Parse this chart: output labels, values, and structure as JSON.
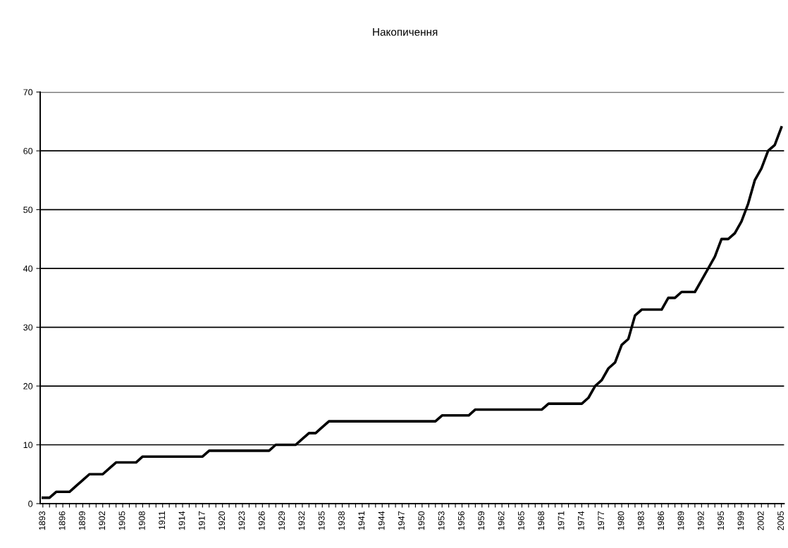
{
  "chart_data": {
    "type": "line",
    "title": "Накопичення",
    "categories": [
      "1893",
      null,
      null,
      "1896",
      null,
      null,
      "1899",
      null,
      null,
      "1902",
      null,
      null,
      "1905",
      null,
      null,
      "1908",
      null,
      null,
      "1911",
      null,
      null,
      "1914",
      null,
      null,
      "1917",
      null,
      null,
      "1920",
      null,
      null,
      "1923",
      null,
      null,
      "1926",
      null,
      null,
      "1929",
      null,
      null,
      "1932",
      null,
      null,
      "1935",
      null,
      null,
      "1938",
      null,
      null,
      "1941",
      null,
      null,
      "1944",
      null,
      null,
      "1947",
      null,
      null,
      "1950",
      null,
      null,
      "1953",
      null,
      null,
      "1956",
      null,
      null,
      "1959",
      null,
      null,
      "1962",
      null,
      null,
      "1965",
      null,
      null,
      "1968",
      null,
      null,
      "1971",
      null,
      null,
      "1974",
      null,
      null,
      "1977",
      null,
      null,
      "1980",
      null,
      null,
      "1983",
      null,
      null,
      "1986",
      null,
      null,
      "1989",
      null,
      null,
      "1992",
      null,
      null,
      "1995",
      null,
      null,
      "1999",
      null,
      null,
      "2002",
      null,
      null,
      "2005"
    ],
    "series": [
      {
        "color": "#000000",
        "values": [
          1,
          1,
          2,
          2,
          2,
          3,
          4,
          5,
          5,
          5,
          6,
          7,
          7,
          7,
          7,
          8,
          8,
          8,
          8,
          8,
          8,
          8,
          8,
          8,
          8,
          9,
          9,
          9,
          9,
          9,
          9,
          9,
          9,
          9,
          9,
          10,
          10,
          10,
          10,
          11,
          12,
          12,
          13,
          14,
          14,
          14,
          14,
          14,
          14,
          14,
          14,
          14,
          14,
          14,
          14,
          14,
          14,
          14,
          14,
          14,
          15,
          15,
          15,
          15,
          15,
          16,
          16,
          16,
          16,
          16,
          16,
          16,
          16,
          16,
          16,
          16,
          17,
          17,
          17,
          17,
          17,
          17,
          18,
          20,
          21,
          23,
          24,
          27,
          28,
          32,
          33,
          33,
          33,
          33,
          35,
          35,
          36,
          36,
          36,
          38,
          40,
          42,
          45,
          45,
          46,
          48,
          51,
          55,
          57,
          60,
          61,
          64
        ]
      }
    ],
    "ylim": [
      0,
      70
    ],
    "yticks": [
      0,
      10,
      20,
      30,
      40,
      50,
      60,
      70
    ],
    "grid": "y",
    "legend": false,
    "marker": "none",
    "line_style": "solid"
  }
}
